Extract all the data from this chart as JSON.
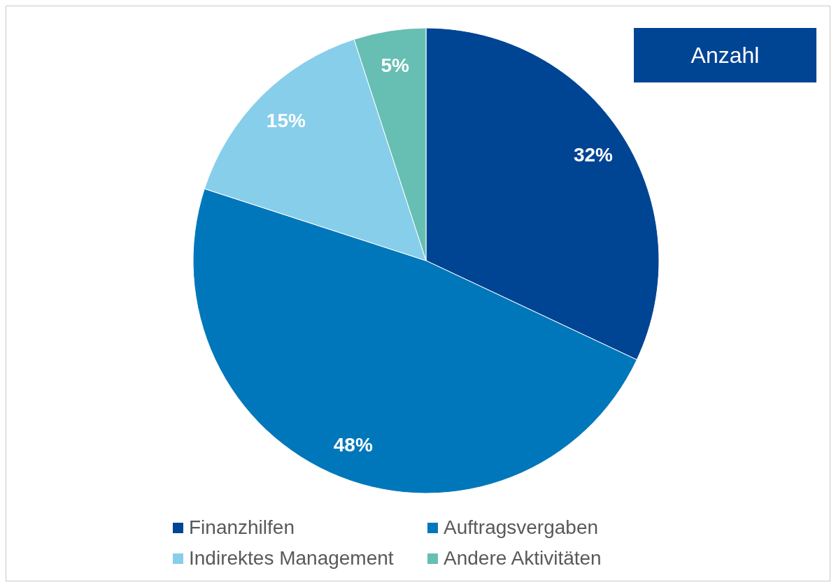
{
  "chart_data": {
    "type": "pie",
    "title": "Anzahl",
    "categories": [
      "Finanzhilfen",
      "Auftragsvergaben",
      "Indirektes Management",
      "Andere Aktivitäten"
    ],
    "values": [
      32,
      48,
      15,
      5
    ],
    "colors": [
      "#004494",
      "#0077bb",
      "#87ceeb",
      "#66bfb2"
    ],
    "value_labels": [
      "32%",
      "48%",
      "15%",
      "5%"
    ],
    "legend": "bottom"
  }
}
